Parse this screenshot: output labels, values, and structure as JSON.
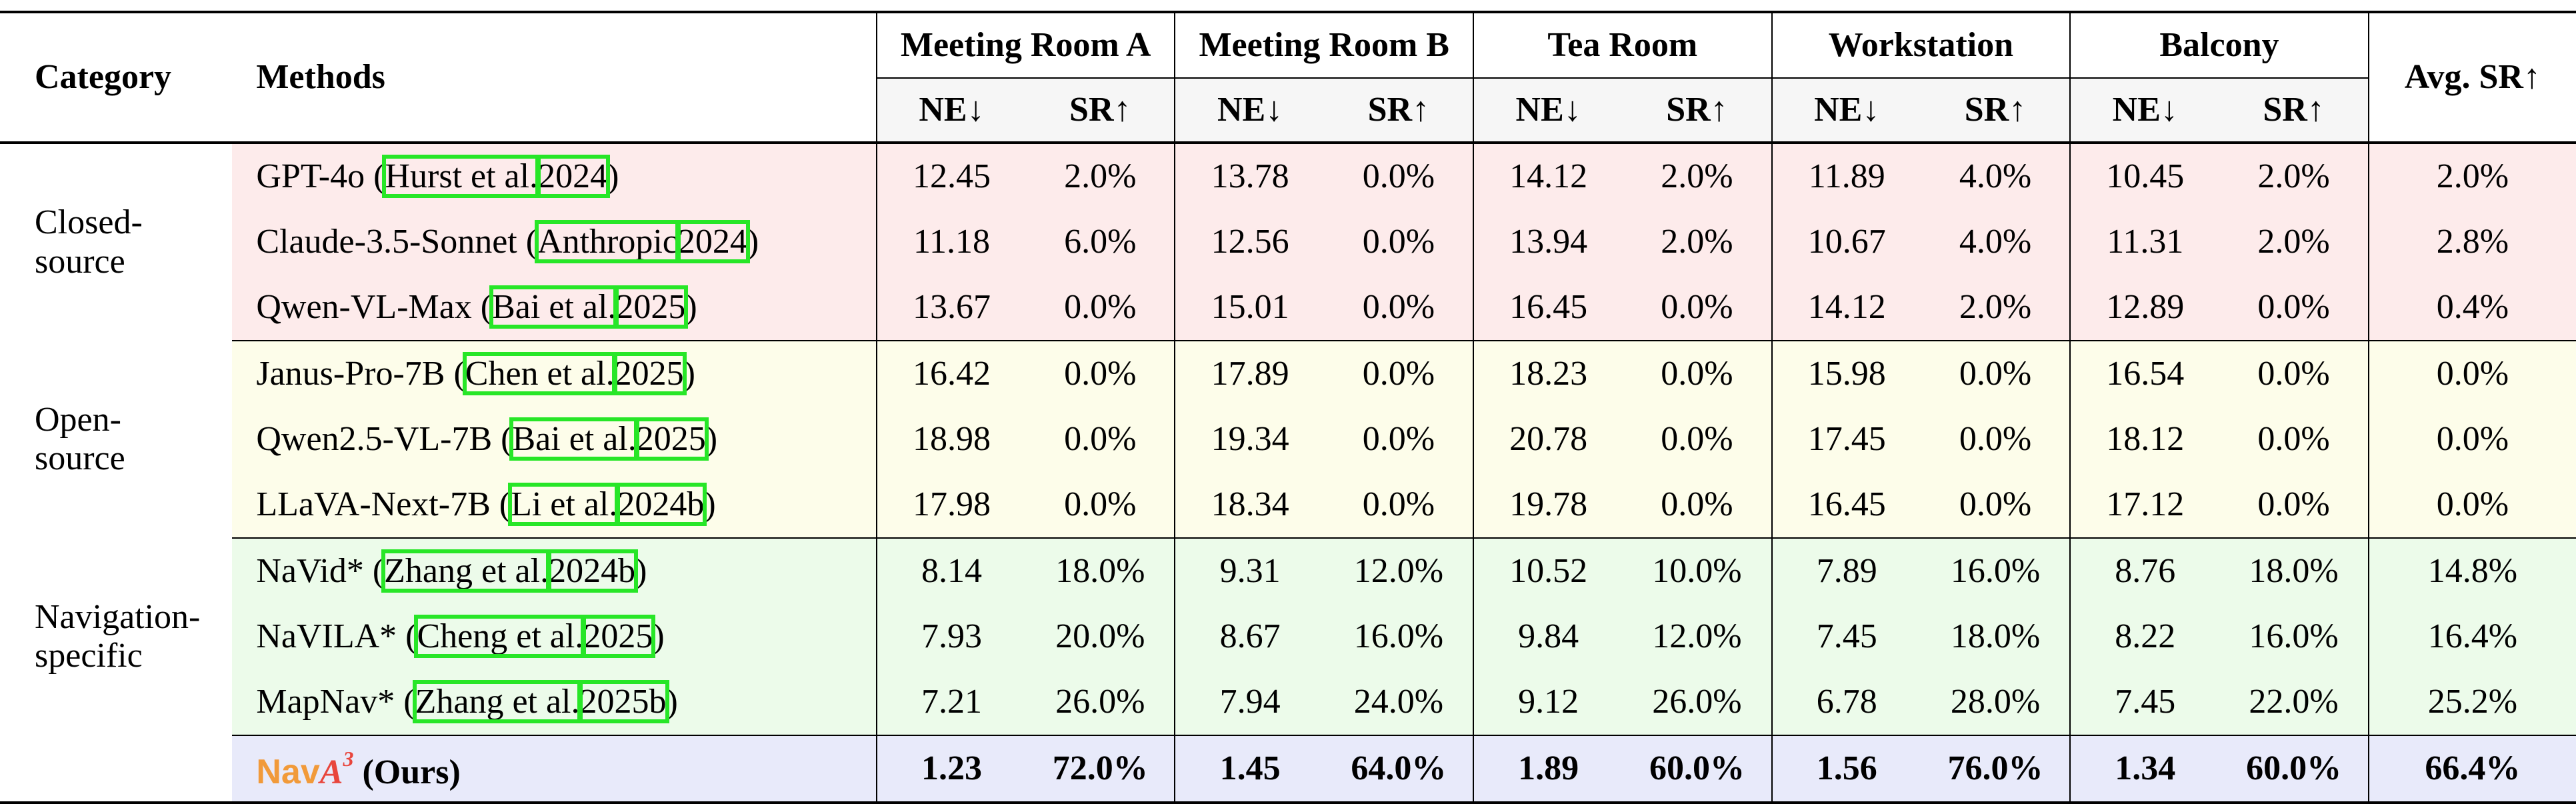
{
  "header": {
    "category": "Category",
    "methods": "Methods",
    "rooms": [
      "Meeting Room A",
      "Meeting Room B",
      "Tea Room",
      "Workstation",
      "Balcony"
    ],
    "avg": "Avg. SR↑",
    "ne": "NE↓",
    "sr": "SR↑"
  },
  "groups": [
    {
      "category": [
        "Closed-",
        "source"
      ],
      "rows": [
        {
          "name": "GPT-4o (",
          "cite_author": "Hurst et al.",
          "cite_year": "2024",
          "close": ")",
          "values": [
            "12.45",
            "2.0%",
            "13.78",
            "0.0%",
            "14.12",
            "2.0%",
            "11.89",
            "4.0%",
            "10.45",
            "2.0%"
          ],
          "avg": "2.0%"
        },
        {
          "name": "Claude-3.5-Sonnet (",
          "cite_author": "Anthropic",
          "cite_year": "2024",
          "close": ")",
          "values": [
            "11.18",
            "6.0%",
            "12.56",
            "0.0%",
            "13.94",
            "2.0%",
            "10.67",
            "4.0%",
            "11.31",
            "2.0%"
          ],
          "avg": "2.8%"
        },
        {
          "name": "Qwen-VL-Max (",
          "cite_author": "Bai et al.",
          "cite_year": "2025",
          "close": ")",
          "values": [
            "13.67",
            "0.0%",
            "15.01",
            "0.0%",
            "16.45",
            "0.0%",
            "14.12",
            "2.0%",
            "12.89",
            "0.0%"
          ],
          "avg": "0.4%"
        }
      ]
    },
    {
      "category": [
        "Open-",
        "source"
      ],
      "rows": [
        {
          "name": "Janus-Pro-7B (",
          "cite_author": "Chen et al.",
          "cite_year": "2025",
          "close": ")",
          "values": [
            "16.42",
            "0.0%",
            "17.89",
            "0.0%",
            "18.23",
            "0.0%",
            "15.98",
            "0.0%",
            "16.54",
            "0.0%"
          ],
          "avg": "0.0%"
        },
        {
          "name": "Qwen2.5-VL-7B (",
          "cite_author": "Bai et al.",
          "cite_year": "2025",
          "close": ")",
          "values": [
            "18.98",
            "0.0%",
            "19.34",
            "0.0%",
            "20.78",
            "0.0%",
            "17.45",
            "0.0%",
            "18.12",
            "0.0%"
          ],
          "avg": "0.0%"
        },
        {
          "name": "LLaVA-Next-7B (",
          "cite_author": "Li et al.",
          "cite_year": "2024b",
          "close": ")",
          "values": [
            "17.98",
            "0.0%",
            "18.34",
            "0.0%",
            "19.78",
            "0.0%",
            "16.45",
            "0.0%",
            "17.12",
            "0.0%"
          ],
          "avg": "0.0%"
        }
      ]
    },
    {
      "category": [
        "Navigation-",
        "specific"
      ],
      "rows": [
        {
          "name": "NaVid* (",
          "cite_author": "Zhang et al.",
          "cite_year": "2024b",
          "close": ")",
          "values": [
            "8.14",
            "18.0%",
            "9.31",
            "12.0%",
            "10.52",
            "10.0%",
            "7.89",
            "16.0%",
            "8.76",
            "18.0%"
          ],
          "avg": "14.8%"
        },
        {
          "name": "NaVILA* (",
          "cite_author": "Cheng et al.",
          "cite_year": "2025",
          "close": ")",
          "values": [
            "7.93",
            "20.0%",
            "8.67",
            "16.0%",
            "9.84",
            "12.0%",
            "7.45",
            "18.0%",
            "8.22",
            "16.0%"
          ],
          "avg": "16.4%"
        },
        {
          "name": "MapNav* (",
          "cite_author": "Zhang et al.",
          "cite_year": "2025b",
          "close": ")",
          "values": [
            "7.21",
            "26.0%",
            "7.94",
            "24.0%",
            "9.12",
            "26.0%",
            "6.78",
            "28.0%",
            "7.45",
            "22.0%"
          ],
          "avg": "25.2%"
        }
      ]
    }
  ],
  "ours": {
    "nav": "Nav",
    "a": "A",
    "sup": "3",
    "suffix": " (Ours)",
    "values": [
      "1.23",
      "72.0%",
      "1.45",
      "64.0%",
      "1.89",
      "60.0%",
      "1.56",
      "76.0%",
      "1.34",
      "60.0%"
    ],
    "avg": "66.4%"
  },
  "colors": {
    "closed_bg": "#fdebeb",
    "open_bg": "#fdfdea",
    "nav_bg": "#ecfbea",
    "ours_bg": "#e8eafa",
    "highlight_box": "#27e627",
    "nav_orange": "#f19a3a",
    "a3_red": "#e8453c"
  }
}
